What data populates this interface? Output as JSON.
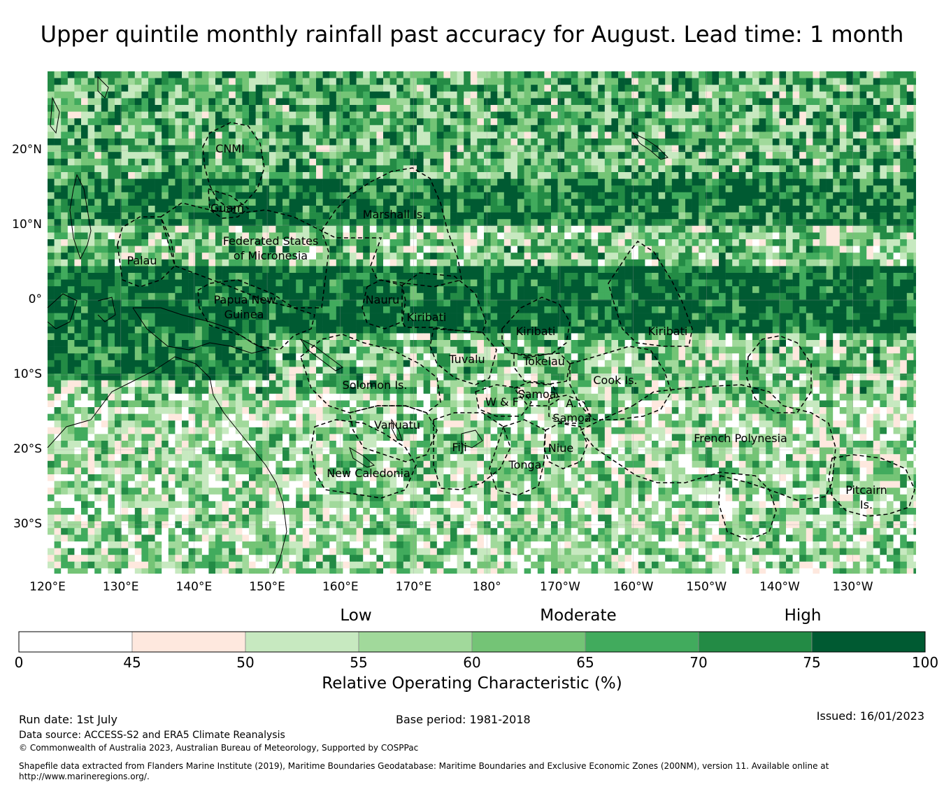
{
  "title": "Upper quintile monthly rainfall past accuracy for August. Lead time: 1 month",
  "map": {
    "lat_labels": [
      "20°N",
      "10°N",
      "0°",
      "10°S",
      "20°S",
      "30°S"
    ],
    "lon_labels": [
      "120°E",
      "130°E",
      "140°E",
      "150°E",
      "160°E",
      "170°E",
      "180°",
      "170°W",
      "160°W",
      "150°W",
      "140°W",
      "130°W"
    ],
    "regions": [
      "CNMI",
      "Guam",
      "Marshall Is.",
      "Federated States",
      "of Micronesia",
      "Palau",
      "Papua New",
      "Guinea",
      "Nauru",
      "Kiribati",
      "Kiribati",
      "Kiribati",
      "Tuvalu",
      "Tokelau",
      "Cook Is.",
      "Solomon Is.",
      "W & F",
      "Samoa",
      "A.",
      "Samoa",
      "Vanuatu",
      "Fiji",
      "Niue",
      "Tonga",
      "New Caledonia",
      "French Polynesia",
      "Pitcairn",
      "Is."
    ]
  },
  "colorbar": {
    "categories": [
      "Low",
      "Moderate",
      "High"
    ],
    "ticks": [
      "0",
      "45",
      "50",
      "55",
      "60",
      "65",
      "70",
      "75",
      "100"
    ],
    "colors": [
      "#ffffff",
      "#fee8de",
      "#c7e9c0",
      "#a1d99b",
      "#74c476",
      "#41ab5d",
      "#238b45",
      "#005a32"
    ],
    "label": "Relative Operating Characteristic (%)"
  },
  "footer": {
    "run_date": "Run date: 1st July",
    "base_period": "Base period: 1981-2018",
    "issued": "Issued: 16/01/2023",
    "data_source": "Data source: ACCESS-S2 and ERA5 Climate Reanalysis",
    "copyright": "© Commonwealth of Australia 2023, Australian Bureau of Meteorology, Supported by COSPPac",
    "shapefile_line1": "Shapefile data extracted from Flanders Marine Institute (2019), Maritime Boundaries Geodatabase: Maritime Boundaries and Exclusive Economic Zones (200NM), version 11. Available online at",
    "shapefile_line2": "http://www.marineregions.org/."
  }
}
